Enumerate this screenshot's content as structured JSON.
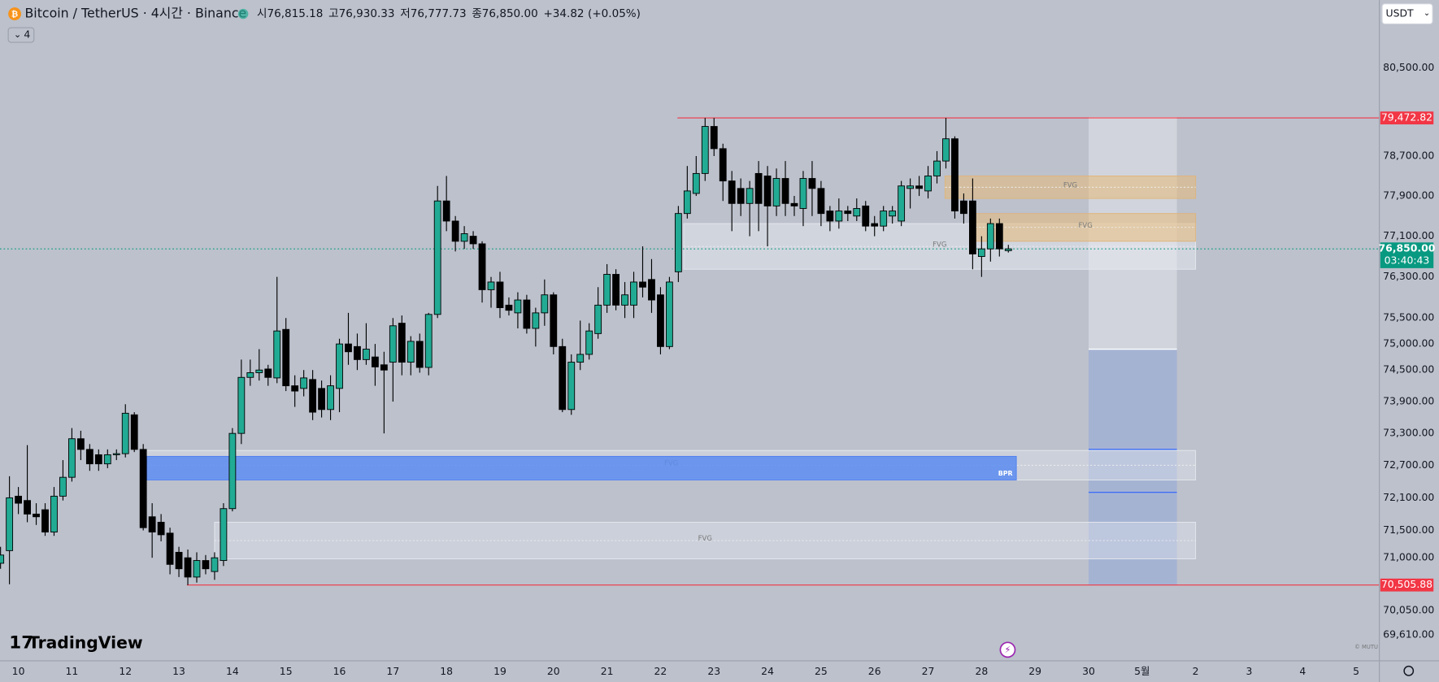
{
  "chart_data": {
    "type": "candlestick",
    "title": "Bitcoin / TetherUS · 4시간 · Binance",
    "ohlc_header": [
      {
        "label": "시",
        "value": 76815.18,
        "value_label": "76,815.18"
      },
      {
        "label": "고",
        "value": 76930.33,
        "value_label": "76,930.33"
      },
      {
        "label": "저",
        "value": 76777.73,
        "value_label": "76,777.73"
      },
      {
        "label": "종",
        "value": 76850.0,
        "value_label": "76,850.00"
      }
    ],
    "change": {
      "value": 34.82,
      "label": "+34.82"
    },
    "change_pct": {
      "value": 0.05,
      "label": "(+0.05%)"
    },
    "indicators_count": 4,
    "currency": "USDT",
    "watermark": "TradingView",
    "credit": "© MUTU",
    "log_scale": true,
    "grid": false,
    "up_color": "#22ab94",
    "down_color": "#000000",
    "ylim": [
      69150,
      81910
    ],
    "xlim": [
      -0.06,
      154.6
    ],
    "yticks": [
      {
        "value": 80500,
        "label": "80,500.00"
      },
      {
        "value": 78700,
        "label": "78,700.00"
      },
      {
        "value": 77900,
        "label": "77,900.00"
      },
      {
        "value": 77100,
        "label": "77,100.00"
      },
      {
        "value": 76300,
        "label": "76,300.00"
      },
      {
        "value": 75500,
        "label": "75,500.00"
      },
      {
        "value": 75000,
        "label": "75,000.00"
      },
      {
        "value": 74500,
        "label": "74,500.00"
      },
      {
        "value": 73900,
        "label": "73,900.00"
      },
      {
        "value": 73300,
        "label": "73,300.00"
      },
      {
        "value": 72700,
        "label": "72,700.00"
      },
      {
        "value": 72100,
        "label": "72,100.00"
      },
      {
        "value": 71500,
        "label": "71,500.00"
      },
      {
        "value": 71000,
        "label": "71,000.00"
      },
      {
        "value": 70050,
        "label": "70,050.00"
      },
      {
        "value": 69610,
        "label": "69,610.00"
      }
    ],
    "xticks": [
      {
        "value": 2,
        "label": "10"
      },
      {
        "value": 8,
        "label": "11"
      },
      {
        "value": 14,
        "label": "12"
      },
      {
        "value": 20,
        "label": "13"
      },
      {
        "value": 26,
        "label": "14"
      },
      {
        "value": 32,
        "label": "15"
      },
      {
        "value": 38,
        "label": "16"
      },
      {
        "value": 44,
        "label": "17"
      },
      {
        "value": 50,
        "label": "18"
      },
      {
        "value": 56,
        "label": "19"
      },
      {
        "value": 62,
        "label": "20"
      },
      {
        "value": 68,
        "label": "21"
      },
      {
        "value": 74,
        "label": "22"
      },
      {
        "value": 80,
        "label": "23"
      },
      {
        "value": 86,
        "label": "24"
      },
      {
        "value": 92,
        "label": "25"
      },
      {
        "value": 98,
        "label": "26"
      },
      {
        "value": 104,
        "label": "27"
      },
      {
        "value": 110,
        "label": "28"
      },
      {
        "value": 116,
        "label": "29"
      },
      {
        "value": 122,
        "label": "30"
      },
      {
        "value": 128,
        "label": "5월"
      },
      {
        "value": 134,
        "label": "2"
      },
      {
        "value": 140,
        "label": "3"
      },
      {
        "value": 146,
        "label": "4"
      },
      {
        "value": 152,
        "label": "5"
      }
    ],
    "open": [
      70900,
      71130,
      72130,
      72050,
      71800,
      71880,
      71470,
      72130,
      72480,
      73200,
      73000,
      72900,
      72730,
      72900,
      72920,
      73650,
      73000,
      71750,
      71650,
      71450,
      71100,
      71000,
      70650,
      70950,
      70750,
      70950,
      71900,
      73300,
      74360,
      74450,
      74520,
      74350,
      75280,
      74200,
      74150,
      74320,
      74150,
      73750,
      74150,
      75000,
      74950,
      74700,
      74750,
      74600,
      74650,
      75400,
      74650,
      75050,
      74550,
      75570,
      77800,
      77400,
      77000,
      77100,
      76950,
      76050,
      76200,
      75750,
      75600,
      75850,
      75300,
      75600,
      75950,
      74950,
      73750,
      74650,
      74800,
      75200,
      75750,
      76350,
      75750,
      75750,
      76200,
      76250,
      75950,
      74950,
      76400,
      77550,
      77950,
      78350,
      79300,
      78850,
      78200,
      78050,
      77750,
      78350,
      78300,
      77700,
      78250,
      77750,
      77650,
      78250,
      78050,
      77600,
      77400,
      77600,
      77500,
      77700,
      77350,
      77300,
      77500,
      77400,
      78050,
      78100,
      78000,
      78300,
      78600,
      79050,
      77800,
      77800,
      76700,
      76850,
      77350,
      76815.18
    ],
    "high": [
      71200,
      72500,
      72300,
      73080,
      72000,
      72000,
      72300,
      72800,
      73400,
      73350,
      73100,
      73000,
      73000,
      73000,
      73850,
      73700,
      73100,
      72000,
      71800,
      71550,
      71200,
      71150,
      71100,
      71050,
      71100,
      72000,
      73400,
      74700,
      74700,
      74900,
      74600,
      76300,
      75500,
      74400,
      74500,
      74500,
      74300,
      74400,
      75100,
      75600,
      75200,
      75400,
      75000,
      74850,
      75500,
      75550,
      75150,
      75200,
      75600,
      78100,
      78300,
      77500,
      77300,
      77200,
      77000,
      76300,
      76400,
      75900,
      76000,
      75950,
      75700,
      76250,
      76000,
      75100,
      74800,
      75450,
      75400,
      76100,
      76550,
      76450,
      76200,
      76400,
      76900,
      76650,
      76100,
      76300,
      77700,
      78500,
      78700,
      79472.82,
      79472.82,
      78950,
      78400,
      78250,
      78200,
      78600,
      78500,
      78450,
      78600,
      77900,
      78400,
      78600,
      78200,
      77700,
      77850,
      77700,
      77850,
      77800,
      77500,
      77700,
      77700,
      78200,
      78250,
      78300,
      78500,
      78800,
      79472.82,
      79100,
      77950,
      78250,
      77100,
      77450,
      77450,
      76930.33
    ],
    "low": [
      70800,
      70520,
      71800,
      71650,
      71600,
      71400,
      71400,
      72050,
      72400,
      72800,
      72600,
      72600,
      72650,
      72800,
      72850,
      72950,
      71500,
      71000,
      71300,
      70700,
      70650,
      70505.88,
      70550,
      70700,
      70600,
      70850,
      71850,
      73100,
      74200,
      74300,
      74200,
      74250,
      74100,
      73800,
      74000,
      73550,
      73600,
      73550,
      73700,
      74600,
      74500,
      74600,
      74200,
      73300,
      73900,
      74400,
      74400,
      74450,
      74400,
      75500,
      77200,
      76800,
      76850,
      76850,
      75800,
      75700,
      75500,
      75550,
      75300,
      75200,
      74950,
      75350,
      74800,
      73700,
      73650,
      74500,
      74700,
      75100,
      75600,
      75650,
      75500,
      75500,
      75900,
      75600,
      74800,
      74900,
      76200,
      77450,
      77900,
      78200,
      78700,
      77800,
      77200,
      77500,
      77100,
      77200,
      76900,
      77500,
      77500,
      77500,
      77300,
      77500,
      77300,
      77200,
      77250,
      77400,
      77400,
      77200,
      77100,
      77200,
      77350,
      77300,
      77650,
      77900,
      77850,
      78150,
      78450,
      77450,
      77350,
      76450,
      76300,
      76600,
      76700,
      76777.73
    ],
    "close": [
      71050,
      72100,
      72000,
      71800,
      71750,
      71470,
      72130,
      72480,
      73200,
      73000,
      72730,
      72730,
      72900,
      72920,
      73680,
      73000,
      71550,
      71470,
      71420,
      70880,
      70800,
      70650,
      70950,
      70800,
      71000,
      71900,
      73300,
      74360,
      74450,
      74500,
      74360,
      75250,
      74200,
      74100,
      74350,
      73700,
      73750,
      74200,
      75000,
      74850,
      74700,
      74900,
      74560,
      74500,
      75350,
      74650,
      75050,
      74550,
      75570,
      77800,
      77400,
      77000,
      77150,
      76950,
      76050,
      76200,
      75700,
      75650,
      75850,
      75300,
      75600,
      75950,
      74950,
      73750,
      74650,
      74800,
      75250,
      75750,
      76350,
      75750,
      75950,
      76200,
      76100,
      75850,
      74950,
      76200,
      77550,
      78000,
      78350,
      79300,
      78850,
      78200,
      77750,
      77750,
      78050,
      77750,
      77700,
      78250,
      77750,
      77700,
      78250,
      78050,
      77550,
      77400,
      77600,
      77550,
      77650,
      77300,
      77300,
      77600,
      77600,
      78100,
      78100,
      78050,
      78300,
      78600,
      79050,
      77600,
      77550,
      76750,
      76850,
      77350,
      76850,
      76850
    ],
    "zones": [
      {
        "label": "FVG",
        "start": 76.6,
        "end": 134,
        "top": 77350,
        "bottom": 76450,
        "color": "rgba(235,238,243,0.45)",
        "border": "#e6e9ee",
        "label_align": "center"
      },
      {
        "label": "FVG",
        "start": 105.9,
        "end": 134,
        "top": 78300,
        "bottom": 77850,
        "color": "rgba(230,185,120,0.55)",
        "border": "#e0b47a",
        "label_align": "center"
      },
      {
        "label": "FVG",
        "start": 109.3,
        "end": 134,
        "top": 77550,
        "bottom": 77000,
        "color": "rgba(230,185,120,0.55)",
        "border": "#e0b47a",
        "label_align": "center"
      },
      {
        "label": "FVG",
        "start": 16.4,
        "end": 134,
        "top": 72980,
        "bottom": 72430,
        "color": "rgba(235,238,243,0.35)",
        "border": "#e6e9ee",
        "label_align": "center"
      },
      {
        "label": "BPR",
        "start": 16.4,
        "end": 113.9,
        "top": 72870,
        "bottom": 72430,
        "color": "rgba(91,140,240,0.85)",
        "border": "#4f7ff0",
        "label_align": "end"
      },
      {
        "label": "FVG",
        "start": 24,
        "end": 134,
        "top": 71650,
        "bottom": 70980,
        "color": "rgba(235,238,243,0.35)",
        "border": "#e6e9ee",
        "label_align": "center"
      }
    ],
    "price_lines": [
      {
        "value": 79472.82,
        "label": "79,472.82",
        "start": 75.9,
        "color": "#f23645"
      },
      {
        "value": 70505.88,
        "label": "70,505.88",
        "start": 20.9,
        "color": "#f23645"
      }
    ],
    "current_price": {
      "value": 76850,
      "label": "76,850.00",
      "countdown": "03:40:43",
      "color": "#089981"
    },
    "position": {
      "start": 122,
      "end": 131.9,
      "entry": 74900,
      "stop": 79472.82,
      "target": 70505.88,
      "levels": [
        73000,
        72200
      ],
      "stop_color": "rgba(225,228,234,0.55)",
      "target_color": "rgba(150,170,215,0.6)",
      "level_color": "#2962ff"
    }
  }
}
